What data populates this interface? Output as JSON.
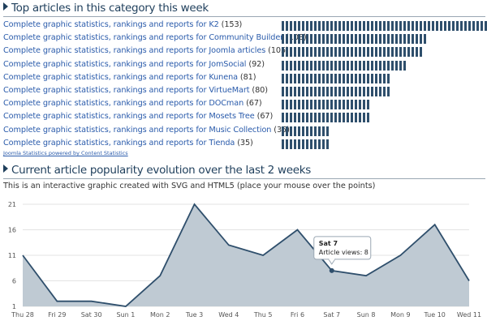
{
  "top_articles": {
    "title": "Top articles in this category this week",
    "items": [
      {
        "label": "Complete graphic statistics, rankings and reports for K2",
        "count": "(153)",
        "value": 153
      },
      {
        "label": "Complete graphic statistics, rankings and reports for Community Builder",
        "count": "(108)",
        "value": 108
      },
      {
        "label": "Complete graphic statistics, rankings and reports for Joomla articles",
        "count": "(105)",
        "value": 105
      },
      {
        "label": "Complete graphic statistics, rankings and reports for JomSocial",
        "count": "(92)",
        "value": 92
      },
      {
        "label": "Complete graphic statistics, rankings and reports for Kunena",
        "count": "(81)",
        "value": 81
      },
      {
        "label": "Complete graphic statistics, rankings and reports for VirtueMart",
        "count": "(80)",
        "value": 80
      },
      {
        "label": "Complete graphic statistics, rankings and reports for DOCman",
        "count": "(67)",
        "value": 67
      },
      {
        "label": "Complete graphic statistics, rankings and reports for Mosets Tree",
        "count": "(67)",
        "value": 67
      },
      {
        "label": "Complete graphic statistics, rankings and reports for Music Collection",
        "count": "(35)",
        "value": 35
      },
      {
        "label": "Complete graphic statistics, rankings and reports for Tienda",
        "count": "(35)",
        "value": 35
      }
    ],
    "bar_color": "#2f4f6c",
    "powered_by": "Joomla Statistics powered by Content Statistics"
  },
  "evolution": {
    "title": "Current article popularity evolution over the last 2 weeks",
    "subtitle": "This is an interactive graphic created with SVG and HTML5 (place your mouse over the points)",
    "tooltip": {
      "title": "Sat 7",
      "text": "Article views: 8",
      "index": 9
    }
  },
  "chart_data": {
    "type": "area",
    "title": "",
    "xlabel": "",
    "ylabel": "",
    "categories": [
      "Thu 28",
      "Fri 29",
      "Sat 30",
      "Sun 1",
      "Mon 2",
      "Tue 3",
      "Wed 4",
      "Thu 5",
      "Fri 6",
      "Sat 7",
      "Sun 8",
      "Mon 9",
      "Tue 10",
      "Wed 11"
    ],
    "values": [
      11,
      2,
      2,
      1,
      7,
      21,
      13,
      11,
      16,
      8,
      7,
      11,
      17,
      6
    ],
    "yticks": [
      1,
      6,
      11,
      16,
      21
    ],
    "ylim": [
      1,
      21
    ],
    "grid": true,
    "fill_color": "#bfcad3",
    "line_color": "#2f4f6c"
  }
}
